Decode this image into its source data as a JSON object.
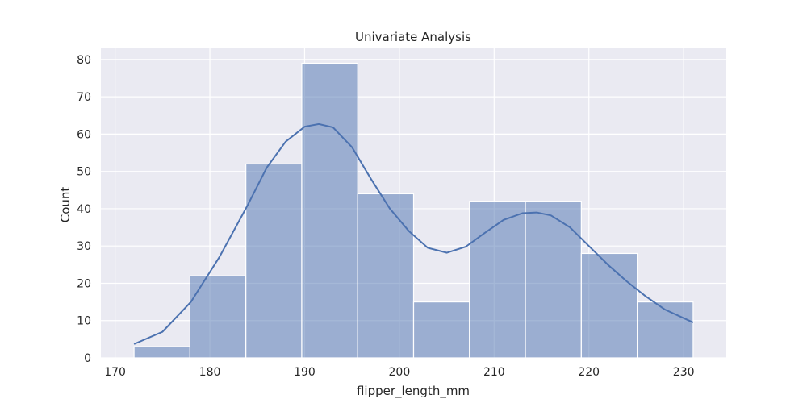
{
  "chart_data": {
    "type": "bar",
    "title": "Univariate Analysis",
    "xlabel": "flipper_length_mm",
    "ylabel": "Count",
    "xlim": [
      168.5,
      234.5
    ],
    "ylim": [
      0,
      83
    ],
    "xticks": [
      170,
      180,
      190,
      200,
      210,
      220,
      230
    ],
    "yticks": [
      0,
      10,
      20,
      30,
      40,
      50,
      60,
      70,
      80
    ],
    "grid": true,
    "bins": [
      {
        "x0": 172.0,
        "x1": 177.9,
        "count": 3
      },
      {
        "x0": 177.9,
        "x1": 183.8,
        "count": 22
      },
      {
        "x0": 183.8,
        "x1": 189.7,
        "count": 52
      },
      {
        "x0": 189.7,
        "x1": 195.6,
        "count": 79
      },
      {
        "x0": 195.6,
        "x1": 201.5,
        "count": 44
      },
      {
        "x0": 201.5,
        "x1": 207.4,
        "count": 15
      },
      {
        "x0": 207.4,
        "x1": 213.3,
        "count": 42
      },
      {
        "x0": 213.3,
        "x1": 219.2,
        "count": 42
      },
      {
        "x0": 219.2,
        "x1": 225.1,
        "count": 28
      },
      {
        "x0": 225.1,
        "x1": 231.0,
        "count": 15
      }
    ],
    "kde": {
      "x": [
        172,
        175,
        178,
        181,
        184,
        186,
        188,
        190,
        191.5,
        193,
        195,
        197,
        199,
        201,
        203,
        205,
        207,
        209,
        211,
        213,
        214.5,
        216,
        218,
        220,
        222,
        224,
        226,
        228,
        231
      ],
      "y": [
        3.7,
        7,
        15,
        27,
        41,
        51,
        58,
        62,
        62.7,
        61.8,
        56.5,
        48,
        40,
        34,
        29.5,
        28.2,
        29.8,
        33.5,
        37,
        38.8,
        39,
        38.2,
        35,
        30,
        25,
        20.5,
        16.5,
        13,
        9.5
      ]
    },
    "colors": {
      "bar": "#4c72b0",
      "background": "#eaeaf2",
      "grid": "#ffffff"
    }
  }
}
